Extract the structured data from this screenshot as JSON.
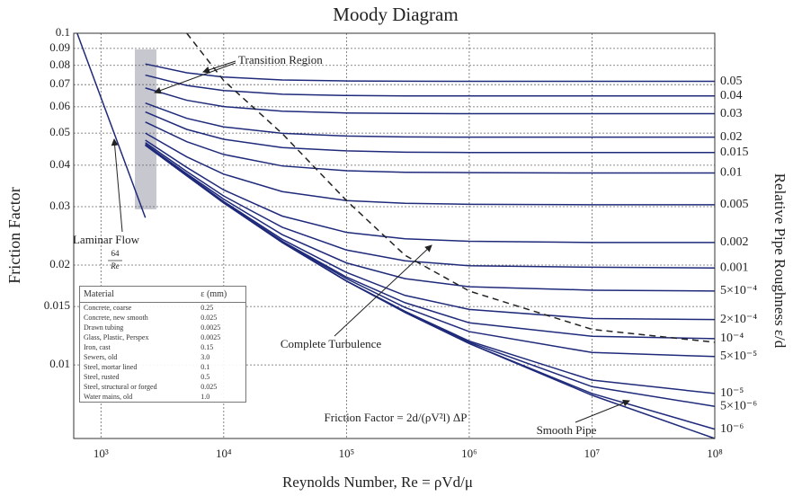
{
  "chart_data": {
    "type": "line",
    "title": "Moody Diagram",
    "xlabel": "Reynolds Number, Re = ρVd/μ",
    "ylabel": "Friction Factor",
    "y2_label": "Relative Pipe Roughness ε/d",
    "transition_label": "Transition Region",
    "laminar_formula": {
      "numerator": "64",
      "denominator": "Re"
    },
    "formula": "Friction Factor = 2d/(ρV²l) ΔP",
    "log_x": true,
    "log_y": true,
    "grid": true,
    "xlim": [
      600,
      100000000
    ],
    "ylim": [
      0.006,
      0.1
    ],
    "xticks": [
      {
        "value": 1000,
        "label": "10³"
      },
      {
        "value": 10000,
        "label": "10⁴"
      },
      {
        "value": 100000,
        "label": "10⁵"
      },
      {
        "value": 1000000,
        "label": "10⁶"
      },
      {
        "value": 10000000,
        "label": "10⁷"
      },
      {
        "value": 100000000,
        "label": "10⁸"
      }
    ],
    "yticks": [
      0.1,
      0.09,
      0.08,
      0.07,
      0.06,
      0.05,
      0.04,
      0.03,
      0.02,
      0.015,
      0.01
    ],
    "x": [
      640,
      2300,
      5000,
      10000,
      30000,
      100000,
      300000,
      1000000,
      10000000,
      100000000
    ],
    "series": [
      {
        "name": "Laminar Flow",
        "color": "#1f2a7a",
        "values": [
          0.1,
          0.0278,
          null,
          null,
          null,
          null,
          null,
          null,
          null,
          null
        ]
      },
      {
        "name": "0.05",
        "color": "#1f2a7a",
        "end_label": true,
        "values": [
          null,
          0.0808,
          0.076,
          0.0738,
          0.0723,
          0.0718,
          0.0717,
          0.0716,
          0.0716,
          0.0716
        ]
      },
      {
        "name": "0.04",
        "color": "#1f2a7a",
        "end_label": true,
        "values": [
          null,
          0.0748,
          0.0696,
          0.0672,
          0.0655,
          0.0649,
          0.0647,
          0.0647,
          0.0647,
          0.0647
        ]
      },
      {
        "name": "0.03",
        "color": "#1f2a7a",
        "end_label": true,
        "values": [
          null,
          0.0684,
          0.0628,
          0.0601,
          0.0582,
          0.0575,
          0.0573,
          0.0572,
          0.0572,
          0.0572
        ]
      },
      {
        "name": "0.02",
        "color": "#1f2a7a",
        "end_label": true,
        "values": [
          null,
          0.0616,
          0.0554,
          0.0522,
          0.0499,
          0.049,
          0.0487,
          0.0486,
          0.0486,
          0.0486
        ]
      },
      {
        "name": "0.015",
        "color": "#1f2a7a",
        "end_label": true,
        "values": [
          null,
          0.0579,
          0.0513,
          0.0479,
          0.0452,
          0.0442,
          0.0438,
          0.0437,
          0.0437,
          0.0437
        ]
      },
      {
        "name": "0.01",
        "color": "#1f2a7a",
        "end_label": true,
        "values": [
          null,
          0.054,
          0.0471,
          0.0431,
          0.0398,
          0.0385,
          0.0381,
          0.038,
          0.0379,
          0.0379
        ]
      },
      {
        "name": "0.005",
        "color": "#1f2a7a",
        "end_label": true,
        "values": [
          null,
          0.05,
          0.0424,
          0.0376,
          0.0333,
          0.0313,
          0.0307,
          0.0305,
          0.0304,
          0.0304
        ]
      },
      {
        "name": "0.002",
        "color": "#1f2a7a",
        "end_label": true,
        "values": [
          null,
          0.0476,
          0.0394,
          0.0337,
          0.0281,
          0.0251,
          0.024,
          0.0236,
          0.0234,
          0.0234
        ]
      },
      {
        "name": "0.001",
        "color": "#1f2a7a",
        "end_label": true,
        "values": [
          null,
          0.0468,
          0.0383,
          0.0323,
          0.026,
          0.0222,
          0.0206,
          0.0199,
          0.0197,
          0.0196
        ]
      },
      {
        "name": "5×10⁻⁴",
        "color": "#1f2a7a",
        "end_label": true,
        "values": [
          null,
          0.0463,
          0.0377,
          0.0316,
          0.0247,
          0.0203,
          0.0182,
          0.0172,
          0.0168,
          0.0167
        ]
      },
      {
        "name": "2×10⁻⁴",
        "color": "#1f2a7a",
        "end_label": true,
        "values": [
          null,
          0.0461,
          0.0374,
          0.0311,
          0.0239,
          0.019,
          0.0162,
          0.0147,
          0.0138,
          0.0137
        ]
      },
      {
        "name": "10⁻⁴",
        "color": "#1f2a7a",
        "end_label": true,
        "values": [
          null,
          0.046,
          0.0373,
          0.0309,
          0.0236,
          0.0184,
          0.0154,
          0.0134,
          0.0122,
          0.012
        ]
      },
      {
        "name": "5×10⁻⁵",
        "color": "#1f2a7a",
        "end_label": true,
        "values": [
          null,
          0.046,
          0.0372,
          0.0308,
          0.0235,
          0.0182,
          0.0149,
          0.0126,
          0.0109,
          0.0106
        ]
      },
      {
        "name": "10⁻⁵",
        "color": "#1f2a7a",
        "end_label": true,
        "values": [
          null,
          0.046,
          0.0372,
          0.0308,
          0.0234,
          0.0179,
          0.0145,
          0.0118,
          0.009,
          0.0082
        ]
      },
      {
        "name": "5×10⁻⁶",
        "color": "#1f2a7a",
        "end_label": true,
        "values": [
          null,
          0.046,
          0.0372,
          0.0308,
          0.0234,
          0.0179,
          0.0145,
          0.0117,
          0.0086,
          0.0075
        ]
      },
      {
        "name": "10⁻⁶",
        "color": "#1f2a7a",
        "end_label": true,
        "values": [
          null,
          0.046,
          0.0372,
          0.0308,
          0.0234,
          0.0179,
          0.0144,
          0.0116,
          0.0082,
          0.0064
        ]
      },
      {
        "name": "Smooth Pipe",
        "color": "#1f2a7a",
        "values": [
          null,
          0.046,
          0.0372,
          0.0308,
          0.0234,
          0.0179,
          0.0144,
          0.0116,
          0.0081,
          0.006
        ]
      },
      {
        "name": "Complete Turbulence",
        "color": "#222222",
        "line_style": "dashed",
        "values": [
          null,
          null,
          0.1,
          0.072,
          0.0498,
          0.0313,
          0.0214,
          0.0167,
          0.0128,
          0.0117
        ]
      }
    ]
  },
  "table": {
    "header": [
      "Material",
      "ε (mm)"
    ],
    "rows": [
      [
        "Concrete, coarse",
        "0.25"
      ],
      [
        "Concrete, new smooth",
        "0.025"
      ],
      [
        "Drawn tubing",
        "0.0025"
      ],
      [
        "Glass, Plastic, Perspex",
        "0.0025"
      ],
      [
        "Iron, cast",
        "0.15"
      ],
      [
        "Sewers, old",
        "3.0"
      ],
      [
        "Steel, mortar lined",
        "0.1"
      ],
      [
        "Steel, rusted",
        "0.5"
      ],
      [
        "Steel, structural or forged",
        "0.025"
      ],
      [
        "Water mains, old",
        "1.0"
      ]
    ]
  }
}
